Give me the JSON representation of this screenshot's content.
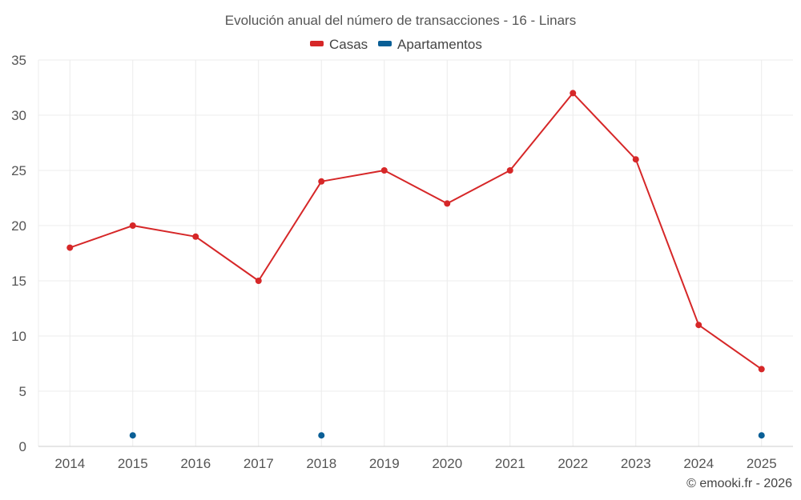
{
  "chart_data": {
    "type": "line",
    "title": "Evolución anual del número de transacciones - 16 - Linars",
    "categories": [
      "2014",
      "2015",
      "2016",
      "2017",
      "2018",
      "2019",
      "2020",
      "2021",
      "2022",
      "2023",
      "2024",
      "2025"
    ],
    "series": [
      {
        "name": "Casas",
        "color": "#d62728",
        "style": "line-with-markers",
        "values": [
          18,
          20,
          19,
          15,
          24,
          25,
          22,
          25,
          32,
          26,
          11,
          7
        ]
      },
      {
        "name": "Apartamentos",
        "color": "#0a5f96",
        "style": "markers-only",
        "values": [
          null,
          1,
          null,
          null,
          1,
          null,
          null,
          null,
          null,
          null,
          null,
          1
        ]
      }
    ],
    "ylim": [
      0,
      35
    ],
    "yticks": [
      0,
      5,
      10,
      15,
      20,
      25,
      30,
      35
    ],
    "grid": true,
    "legend_position": "top-center",
    "xlabel": "",
    "ylabel": ""
  },
  "credit": "© emooki.fr - 2026"
}
